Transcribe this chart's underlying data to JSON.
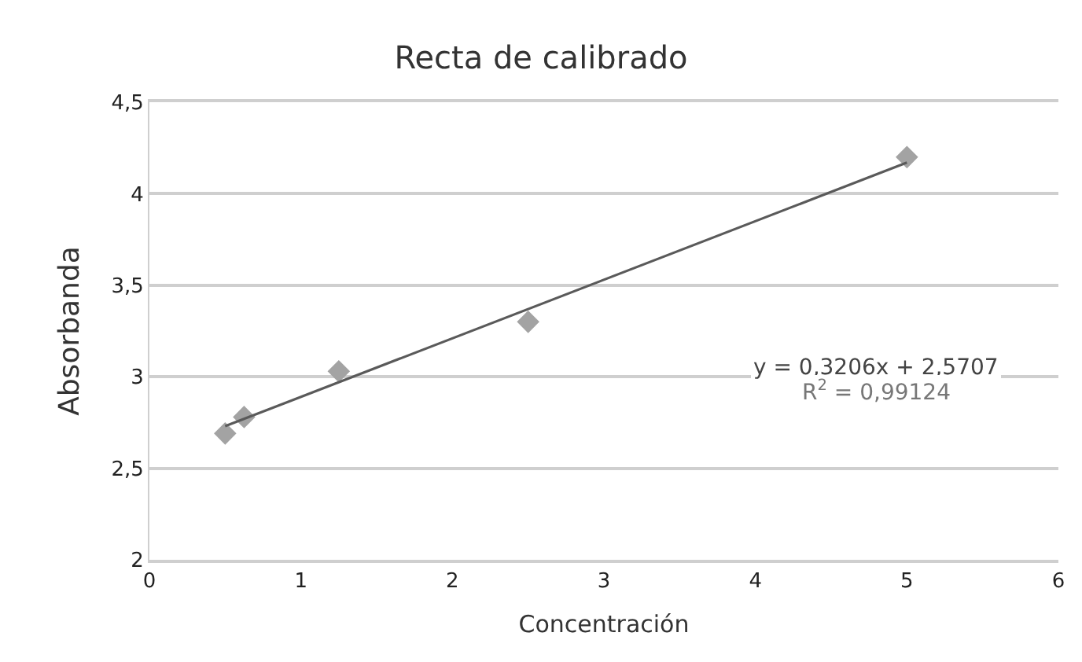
{
  "chart_data": {
    "type": "scatter",
    "title": "Recta de calibrado",
    "xlabel": "Concentración",
    "ylabel": "Absorbanda",
    "x": [
      0.5,
      0.625,
      1.25,
      2.5,
      5
    ],
    "series": [
      {
        "color": "#a3a3a3",
        "values": [
          2.69,
          2.78,
          3.03,
          3.3,
          4.2
        ],
        "marker": "diamond"
      },
      {
        "type": "line",
        "color": "#5a5a5a",
        "x": [
          0.5,
          5
        ],
        "values": [
          2.73,
          4.17
        ],
        "marker": "none",
        "line_style": "solid"
      }
    ],
    "xlim": [
      0,
      6
    ],
    "xticks": [
      0,
      1,
      2,
      3,
      4,
      5,
      6
    ],
    "ylim": [
      2,
      4.5
    ],
    "yticks": [
      2,
      {
        "value": 2.5,
        "label": "2,5"
      },
      3,
      {
        "value": 3.5,
        "label": "3,5"
      },
      4,
      {
        "value": 4.5,
        "label": "4,5"
      }
    ],
    "grid": "y",
    "annotations": [
      "y = 0,3206x + 2,5707",
      "R$^{2}$ = 0,99124"
    ]
  }
}
